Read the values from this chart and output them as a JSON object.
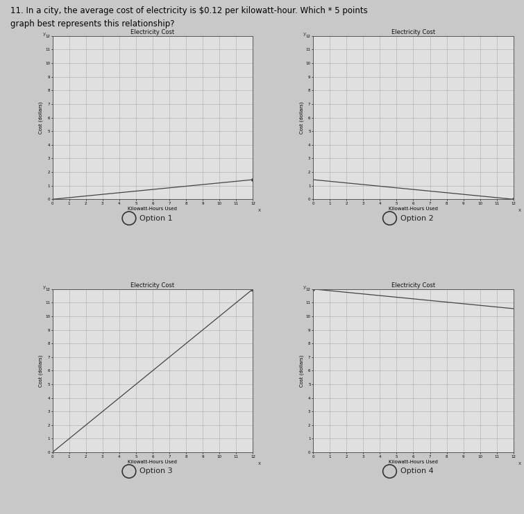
{
  "graph_title": "Electricity Cost",
  "xlabel": "Kilowatt-Hours Used",
  "ylabel": "Cost (dollars)",
  "x_max": 12,
  "y_max": 12,
  "rate": 0.12,
  "options": [
    "Option 1",
    "Option 2",
    "Option 3",
    "Option 4"
  ],
  "background_color": "#c8c8c8",
  "plot_bg": "#e0e0e0",
  "line_color": "#444444",
  "grid_color": "#aaaaaa",
  "title_line1": "11. In a city, the average cost of electricity is $0.12 per kilowatt-hour. Which * 5 points",
  "title_line2": "graph best represents this relationship?",
  "title_fontsize": 8.5,
  "graph_title_fontsize": 6,
  "axis_label_fontsize": 5,
  "tick_fontsize": 4,
  "option_fontsize": 8
}
